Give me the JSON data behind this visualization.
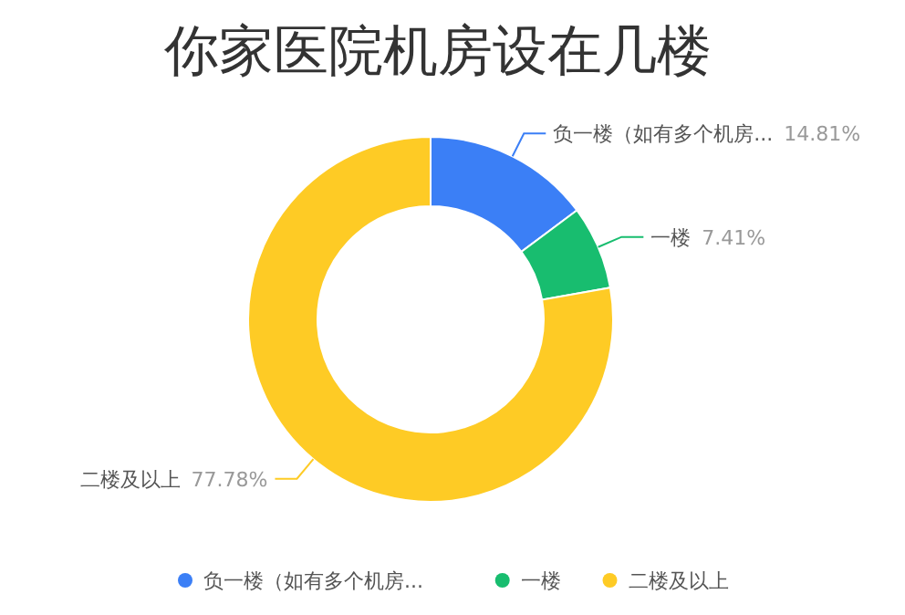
{
  "chart_data": {
    "type": "donut",
    "title": "你家医院机房设在几楼",
    "categories": [
      "负一楼（如有多个机房...",
      "一楼",
      "二楼及以上"
    ],
    "values": [
      14.81,
      7.41,
      77.78
    ],
    "colors": [
      "#3b7ff6",
      "#18bd6f",
      "#fecb25"
    ],
    "value_labels": [
      "14.81%",
      "7.41%",
      "77.78%"
    ],
    "legend": "bottom"
  }
}
